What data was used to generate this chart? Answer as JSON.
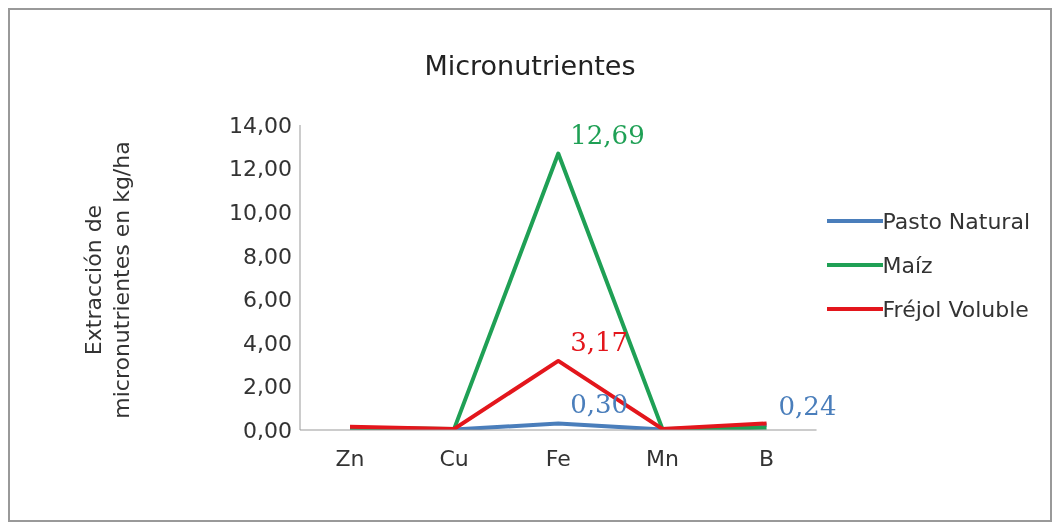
{
  "chart_data": {
    "type": "line",
    "title": "Micronutrientes",
    "ylabel": "Extracción de micronutrientes en kg/ha",
    "categories": [
      "Zn",
      "Cu",
      "Fe",
      "Mn",
      "B"
    ],
    "series": [
      {
        "name": "Pasto Natural",
        "color": "#4a7ebb",
        "values": [
          0.05,
          0.02,
          0.3,
          0.02,
          0.24
        ],
        "value_labels": [
          null,
          null,
          "0,30",
          null,
          "0,24"
        ]
      },
      {
        "name": "Maíz",
        "color": "#1fa055",
        "values": [
          0.1,
          0.05,
          12.69,
          0.05,
          0.1
        ],
        "value_labels": [
          null,
          null,
          "12,69",
          null,
          null
        ]
      },
      {
        "name": "Fréjol Voluble",
        "color": "#e3161c",
        "values": [
          0.15,
          0.05,
          3.17,
          0.05,
          0.3
        ],
        "value_labels": [
          null,
          null,
          "3,17",
          null,
          null
        ]
      }
    ],
    "ylim": [
      0,
      14
    ],
    "yticks": [
      {
        "value": 0,
        "label": "0,00"
      },
      {
        "value": 2,
        "label": "2,00"
      },
      {
        "value": 4,
        "label": "4,00"
      },
      {
        "value": 6,
        "label": "6,00"
      },
      {
        "value": 8,
        "label": "8,00"
      },
      {
        "value": 10,
        "label": "10,00"
      },
      {
        "value": 12,
        "label": "12,00"
      },
      {
        "value": 14,
        "label": "14,00"
      }
    ],
    "grid": false,
    "legend": "right",
    "marker": "none",
    "line_style": "solid"
  }
}
